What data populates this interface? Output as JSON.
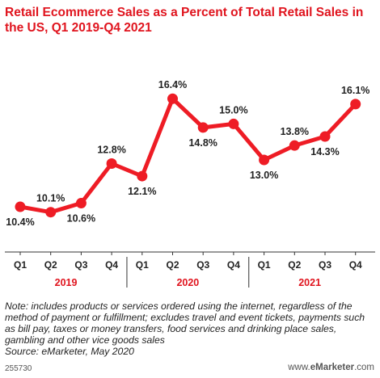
{
  "chart_data": {
    "type": "line",
    "title": "Retail Ecommerce Sales as a Percent of Total Retail Sales in the US, Q1 2019-Q4 2021",
    "categories": [
      "Q1",
      "Q2",
      "Q3",
      "Q4",
      "Q1",
      "Q2",
      "Q3",
      "Q4",
      "Q1",
      "Q2",
      "Q3",
      "Q4"
    ],
    "years": [
      {
        "label": "2019",
        "quarters": 4
      },
      {
        "label": "2020",
        "quarters": 4
      },
      {
        "label": "2021",
        "quarters": 4
      }
    ],
    "series": [
      {
        "values": [
          10.4,
          10.1,
          10.6,
          12.8,
          12.1,
          16.4,
          14.8,
          15.0,
          13.0,
          13.8,
          14.3,
          16.1
        ],
        "labels": [
          "10.4%",
          "10.1%",
          "10.6%",
          "12.8%",
          "12.1%",
          "16.4%",
          "14.8%",
          "15.0%",
          "13.0%",
          "13.8%",
          "14.3%",
          "16.1%"
        ],
        "color": "#ee1c25"
      }
    ],
    "xlabel": "",
    "ylabel": "",
    "grid": false
  },
  "note": "Note: includes products or services ordered using the internet, regardless of the method of payment or fulfillment; excludes travel and event tickets, payments such as bill pay, taxes or money transfers, food services and drinking place sales, gambling and other vice goods sales",
  "source": "Source: eMarketer, May 2020",
  "footer": {
    "chart_id": "255730",
    "logo_prefix": "www.",
    "logo_brand": "eMarketer",
    "logo_suffix": ".com"
  },
  "colors": {
    "title": "#e0141e",
    "line": "#ee1c25",
    "year_label": "#e0141e"
  }
}
